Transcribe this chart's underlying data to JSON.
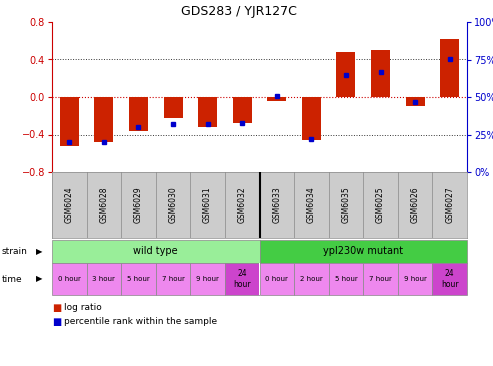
{
  "title": "GDS283 / YJR127C",
  "gsm_labels": [
    "GSM6024",
    "GSM6028",
    "GSM6029",
    "GSM6030",
    "GSM6031",
    "GSM6032",
    "GSM6033",
    "GSM6034",
    "GSM6035",
    "GSM6025",
    "GSM6026",
    "GSM6027"
  ],
  "log_ratio": [
    -0.52,
    -0.48,
    -0.36,
    -0.22,
    -0.32,
    -0.28,
    -0.04,
    -0.46,
    0.48,
    0.5,
    -0.1,
    0.62
  ],
  "percentile": [
    20,
    20,
    30,
    32,
    32,
    33,
    51,
    22,
    65,
    67,
    47,
    75
  ],
  "ylim_left": [
    -0.8,
    0.8
  ],
  "ylim_right": [
    0,
    100
  ],
  "yticks_left": [
    -0.8,
    -0.4,
    0.0,
    0.4,
    0.8
  ],
  "yticks_right": [
    0,
    25,
    50,
    75,
    100
  ],
  "bar_color": "#cc2200",
  "dot_color": "#0000cc",
  "strain_wild": "wild type",
  "strain_mutant": "ypl230w mutant",
  "strain_wild_color": "#99ee99",
  "strain_mutant_color": "#44cc44",
  "time_labels_wild": [
    "0 hour",
    "3 hour",
    "5 hour",
    "7 hour",
    "9 hour",
    "24\nhour"
  ],
  "time_labels_mutant": [
    "0 hour",
    "2 hour",
    "5 hour",
    "7 hour",
    "9 hour",
    "24\nhour"
  ],
  "time_color_light": "#ee88ee",
  "time_color_dark": "#cc44cc",
  "n_wild": 6,
  "n_mutant": 6,
  "legend_log_ratio_color": "#cc2200",
  "legend_percentile_color": "#0000cc",
  "zero_line_color": "#cc0000",
  "dotted_line_color": "#333333",
  "bg_plot": "#ffffff",
  "tick_label_color_left": "#cc0000",
  "tick_label_color_right": "#0000cc",
  "gsm_bg": "#cccccc",
  "divider_color": "#888888"
}
